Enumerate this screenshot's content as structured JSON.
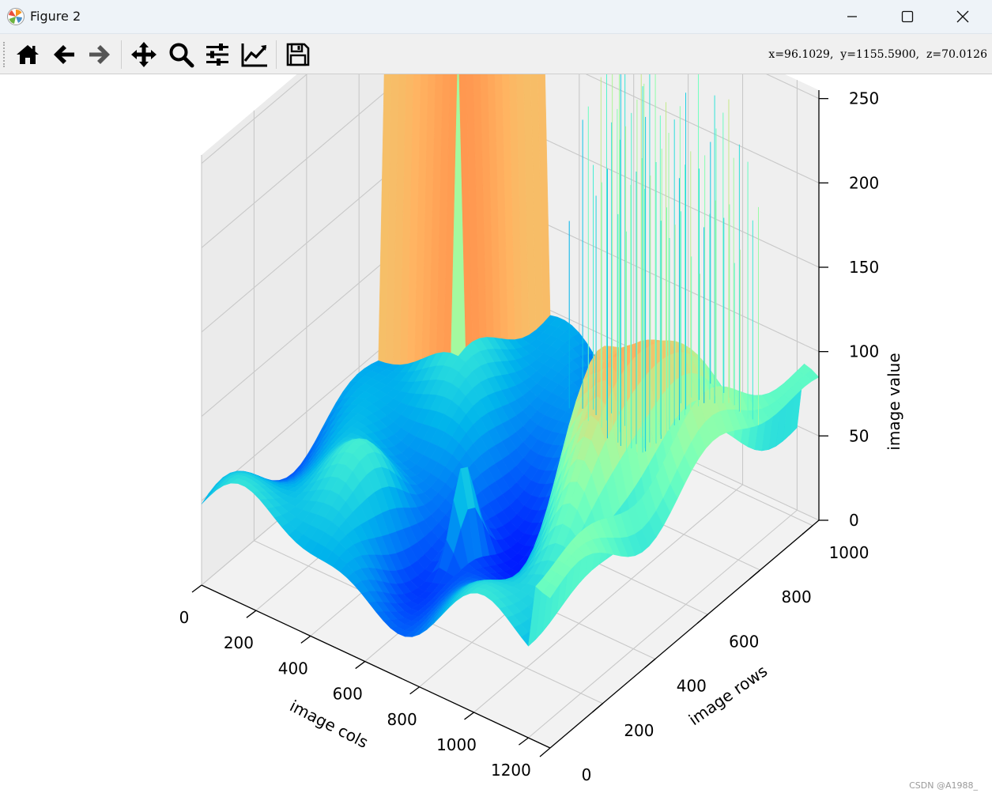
{
  "window": {
    "title": "Figure 2",
    "icon": "matplotlib-logo-icon",
    "controls": [
      "minimize-icon",
      "maximize-icon",
      "close-icon"
    ]
  },
  "toolbar": {
    "tools": [
      {
        "name": "home",
        "icon": "home-icon"
      },
      {
        "name": "back",
        "icon": "arrow-left-icon"
      },
      {
        "name": "forward",
        "icon": "arrow-right-icon"
      },
      {
        "name": "pan",
        "icon": "move-icon"
      },
      {
        "name": "zoom",
        "icon": "magnifier-icon"
      },
      {
        "name": "configure-subplots",
        "icon": "sliders-icon"
      },
      {
        "name": "edit-axis",
        "icon": "line-chart-icon"
      },
      {
        "name": "save",
        "icon": "floppy-disk-icon"
      }
    ],
    "coords": "x=96.1029,  y=1155.5900,  z=70.0126"
  },
  "chart_data": {
    "type": "surface3d",
    "colormap": "rainbow",
    "xlabel": "image cols",
    "ylabel": "image rows",
    "zlabel": "image value",
    "xlim": [
      0,
      1280
    ],
    "ylim": [
      0,
      1024
    ],
    "zlim": [
      0,
      255
    ],
    "x_ticks": [
      "0",
      "200",
      "400",
      "600",
      "800",
      "1000",
      "1200"
    ],
    "y_ticks": [
      "0",
      "200",
      "400",
      "600",
      "800",
      "1000"
    ],
    "z_ticks": [
      "0",
      "50",
      "100",
      "150",
      "200",
      "250"
    ],
    "grid": true
  },
  "watermark": "CSDN @A1988_"
}
